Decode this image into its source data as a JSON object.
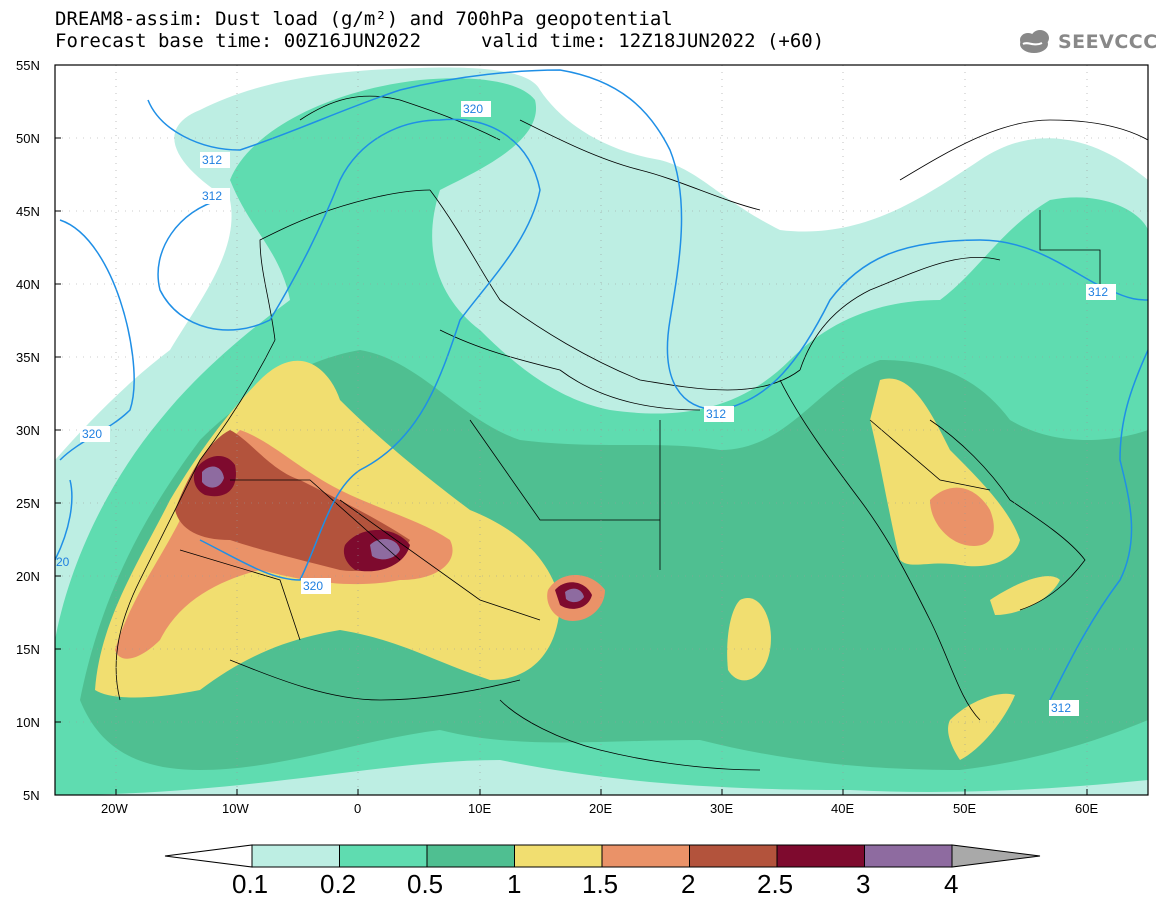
{
  "header": {
    "title_line1": "DREAM8-assim: Dust load (g/m²) and 700hPa geopotential",
    "title_line2": "Forecast base time: 00Z16JUN2022",
    "valid_time": "valid time: 12Z18JUN2022 (+60)",
    "logo_text": "SEEVCCC"
  },
  "map": {
    "lat_labels": [
      "55N",
      "50N",
      "45N",
      "40N",
      "35N",
      "30N",
      "25N",
      "20N",
      "15N",
      "10N",
      "5N"
    ],
    "lon_labels": [
      "20W",
      "10W",
      "0",
      "10E",
      "20E",
      "30E",
      "40E",
      "50E",
      "60E"
    ],
    "contour_labels": [
      "320",
      "312",
      "312",
      "320",
      "320",
      "312",
      "312",
      "312",
      "20"
    ]
  },
  "colorbar": {
    "labels": [
      "0.1",
      "0.2",
      "0.5",
      "1",
      "1.5",
      "2",
      "2.5",
      "3",
      "4"
    ],
    "colors": [
      "#ffffff",
      "#bdeee3",
      "#5fdcb0",
      "#4fbf91",
      "#f1de70",
      "#ea9268",
      "#b3533c",
      "#7e0a2e",
      "#8e6ba0",
      "#a9a9a9"
    ]
  }
}
